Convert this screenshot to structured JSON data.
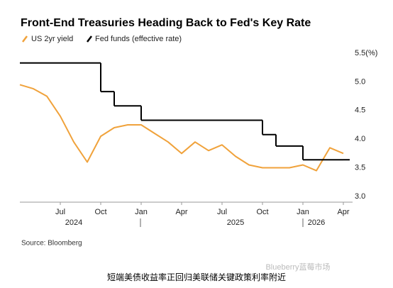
{
  "chart_data": {
    "type": "line",
    "title": "Front-End Treasuries Heading Back to Fed's Key Rate",
    "x": [
      "2024-04",
      "2024-05",
      "2024-06",
      "2024-07",
      "2024-08",
      "2024-09",
      "2024-10",
      "2024-11",
      "2024-12",
      "2025-01",
      "2025-02",
      "2025-03",
      "2025-04",
      "2025-05",
      "2025-06",
      "2025-07",
      "2025-08",
      "2025-09",
      "2025-10",
      "2025-11",
      "2025-12",
      "2026-01",
      "2026-02",
      "2026-03",
      "2026-04"
    ],
    "series": [
      {
        "name": "US 2yr yield",
        "color": "#f0a23b",
        "style": "line",
        "values": [
          4.95,
          4.88,
          4.75,
          4.4,
          3.95,
          3.6,
          4.05,
          4.2,
          4.25,
          4.25,
          4.1,
          3.95,
          3.75,
          3.95,
          3.8,
          3.9,
          3.7,
          3.55,
          3.5,
          3.5,
          3.5,
          3.55,
          3.45,
          3.85,
          3.75
        ]
      },
      {
        "name": "Fed funds (effective rate)",
        "color": "#000000",
        "style": "step",
        "values": [
          5.33,
          5.33,
          5.33,
          5.33,
          5.33,
          5.33,
          4.83,
          4.58,
          4.58,
          4.33,
          4.33,
          4.33,
          4.33,
          4.33,
          4.33,
          4.33,
          4.33,
          4.33,
          4.08,
          3.88,
          3.88,
          3.64,
          3.64,
          3.64,
          3.64
        ]
      }
    ],
    "xlim": [
      "2024-04",
      "2026-04"
    ],
    "xticks": [
      {
        "value": "2024-07",
        "label": "Jul"
      },
      {
        "value": "2024-10",
        "label": "Oct"
      },
      {
        "value": "2025-01",
        "label": "Jan"
      },
      {
        "value": "2025-04",
        "label": "Apr"
      },
      {
        "value": "2025-07",
        "label": "Jul"
      },
      {
        "value": "2025-10",
        "label": "Oct"
      },
      {
        "value": "2026-01",
        "label": "Jan"
      },
      {
        "value": "2026-04",
        "label": "Apr"
      }
    ],
    "year_labels": [
      {
        "value": "2024-08",
        "label": "2024"
      },
      {
        "value": "2025-08",
        "label": "2025"
      },
      {
        "value": "2026-02",
        "label": "2026"
      }
    ],
    "ylim": [
      2.9,
      5.5
    ],
    "yticks": [
      {
        "value": 3,
        "label": "3.0"
      },
      {
        "value": 3.5,
        "label": "3.5"
      },
      {
        "value": 4,
        "label": "4.0"
      },
      {
        "value": 4.5,
        "label": "4.5"
      },
      {
        "value": 5,
        "label": "5.0"
      },
      {
        "value": 5.5,
        "label": "5.5(%)"
      }
    ],
    "source": "Source: Bloomberg",
    "caption": "短端美债收益率正回归美联储关键政策利率附近",
    "watermark": "Blueberry蓝莓市场"
  }
}
